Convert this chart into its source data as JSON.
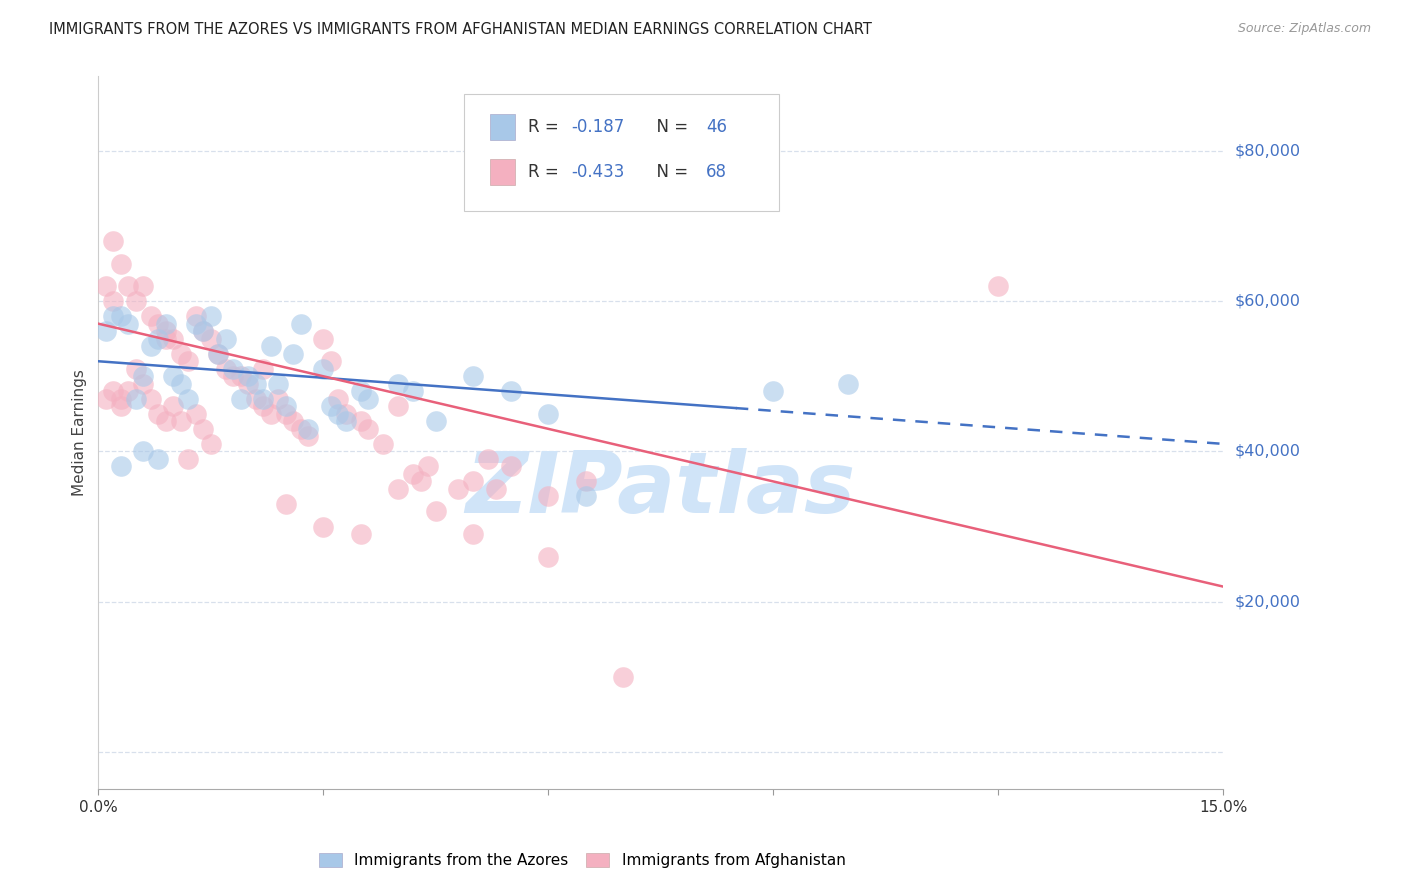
{
  "title": "IMMIGRANTS FROM THE AZORES VS IMMIGRANTS FROM AFGHANISTAN MEDIAN EARNINGS CORRELATION CHART",
  "source": "Source: ZipAtlas.com",
  "ylabel": "Median Earnings",
  "xlim": [
    0.0,
    0.15
  ],
  "ylim": [
    -5000,
    90000
  ],
  "yticks": [
    0,
    20000,
    40000,
    60000,
    80000
  ],
  "ytick_labels": [
    "",
    "$20,000",
    "$40,000",
    "$60,000",
    "$80,000"
  ],
  "xticks": [
    0.0,
    0.03,
    0.06,
    0.09,
    0.12,
    0.15
  ],
  "xtick_labels": [
    "0.0%",
    "",
    "",
    "",
    "",
    "15.0%"
  ],
  "legend_label_azores": "Immigrants from the Azores",
  "legend_label_afghanistan": "Immigrants from Afghanistan",
  "color_azores": "#a8c8e8",
  "color_afghanistan": "#f4b0c0",
  "color_line_azores": "#4472c4",
  "color_line_afghanistan": "#e8607a",
  "color_ytick_labels": "#4472c4",
  "watermark_text": "ZIPatlas",
  "watermark_color": "#d0e4f8",
  "azores_points": [
    [
      0.001,
      56000
    ],
    [
      0.002,
      58000
    ],
    [
      0.003,
      58000
    ],
    [
      0.004,
      57000
    ],
    [
      0.005,
      47000
    ],
    [
      0.006,
      50000
    ],
    [
      0.007,
      54000
    ],
    [
      0.008,
      55000
    ],
    [
      0.009,
      57000
    ],
    [
      0.01,
      50000
    ],
    [
      0.011,
      49000
    ],
    [
      0.012,
      47000
    ],
    [
      0.013,
      57000
    ],
    [
      0.014,
      56000
    ],
    [
      0.015,
      58000
    ],
    [
      0.016,
      53000
    ],
    [
      0.017,
      55000
    ],
    [
      0.018,
      51000
    ],
    [
      0.019,
      47000
    ],
    [
      0.02,
      50000
    ],
    [
      0.021,
      49000
    ],
    [
      0.022,
      47000
    ],
    [
      0.023,
      54000
    ],
    [
      0.024,
      49000
    ],
    [
      0.025,
      46000
    ],
    [
      0.026,
      53000
    ],
    [
      0.027,
      57000
    ],
    [
      0.028,
      43000
    ],
    [
      0.03,
      51000
    ],
    [
      0.031,
      46000
    ],
    [
      0.032,
      45000
    ],
    [
      0.033,
      44000
    ],
    [
      0.035,
      48000
    ],
    [
      0.036,
      47000
    ],
    [
      0.04,
      49000
    ],
    [
      0.042,
      48000
    ],
    [
      0.045,
      44000
    ],
    [
      0.05,
      50000
    ],
    [
      0.055,
      48000
    ],
    [
      0.06,
      45000
    ],
    [
      0.003,
      38000
    ],
    [
      0.006,
      40000
    ],
    [
      0.008,
      39000
    ],
    [
      0.09,
      48000
    ],
    [
      0.1,
      49000
    ],
    [
      0.065,
      34000
    ]
  ],
  "afghanistan_points": [
    [
      0.002,
      68000
    ],
    [
      0.003,
      65000
    ],
    [
      0.001,
      62000
    ],
    [
      0.002,
      60000
    ],
    [
      0.004,
      62000
    ],
    [
      0.005,
      60000
    ],
    [
      0.006,
      62000
    ],
    [
      0.007,
      58000
    ],
    [
      0.008,
      57000
    ],
    [
      0.009,
      56000
    ],
    [
      0.01,
      55000
    ],
    [
      0.011,
      53000
    ],
    [
      0.012,
      52000
    ],
    [
      0.013,
      58000
    ],
    [
      0.014,
      56000
    ],
    [
      0.015,
      55000
    ],
    [
      0.016,
      53000
    ],
    [
      0.017,
      51000
    ],
    [
      0.018,
      50000
    ],
    [
      0.019,
      50000
    ],
    [
      0.02,
      49000
    ],
    [
      0.021,
      47000
    ],
    [
      0.022,
      46000
    ],
    [
      0.023,
      45000
    ],
    [
      0.024,
      47000
    ],
    [
      0.025,
      45000
    ],
    [
      0.026,
      44000
    ],
    [
      0.027,
      43000
    ],
    [
      0.028,
      42000
    ],
    [
      0.001,
      47000
    ],
    [
      0.002,
      48000
    ],
    [
      0.003,
      46000
    ],
    [
      0.03,
      55000
    ],
    [
      0.031,
      52000
    ],
    [
      0.032,
      47000
    ],
    [
      0.033,
      45000
    ],
    [
      0.035,
      44000
    ],
    [
      0.036,
      43000
    ],
    [
      0.038,
      41000
    ],
    [
      0.04,
      46000
    ],
    [
      0.042,
      37000
    ],
    [
      0.043,
      36000
    ],
    [
      0.044,
      38000
    ],
    [
      0.05,
      36000
    ],
    [
      0.052,
      39000
    ],
    [
      0.053,
      35000
    ],
    [
      0.055,
      38000
    ],
    [
      0.06,
      34000
    ],
    [
      0.065,
      36000
    ],
    [
      0.003,
      47000
    ],
    [
      0.004,
      48000
    ],
    [
      0.005,
      51000
    ],
    [
      0.006,
      49000
    ],
    [
      0.007,
      47000
    ],
    [
      0.008,
      45000
    ],
    [
      0.009,
      44000
    ],
    [
      0.01,
      46000
    ],
    [
      0.011,
      44000
    ],
    [
      0.012,
      39000
    ],
    [
      0.013,
      45000
    ],
    [
      0.014,
      43000
    ],
    [
      0.015,
      41000
    ],
    [
      0.025,
      33000
    ],
    [
      0.03,
      30000
    ],
    [
      0.035,
      29000
    ],
    [
      0.12,
      62000
    ],
    [
      0.048,
      35000
    ],
    [
      0.009,
      55000
    ],
    [
      0.022,
      51000
    ],
    [
      0.04,
      35000
    ],
    [
      0.045,
      32000
    ],
    [
      0.05,
      29000
    ],
    [
      0.06,
      26000
    ],
    [
      0.07,
      10000
    ]
  ],
  "azores_trend_x": [
    0.0,
    0.15
  ],
  "azores_trend_y": [
    52000,
    41000
  ],
  "azores_solid_x_end": 0.085,
  "afghanistan_trend_x": [
    0.0,
    0.15
  ],
  "afghanistan_trend_y": [
    57000,
    22000
  ],
  "grid_color": "#d8e0ec",
  "background_color": "#ffffff",
  "title_fontsize": 10.5,
  "ytick_fontsize": 11.5,
  "xtick_fontsize": 11,
  "ylabel_fontsize": 11,
  "marker_size": 220,
  "marker_alpha": 0.6,
  "line_width": 1.8
}
